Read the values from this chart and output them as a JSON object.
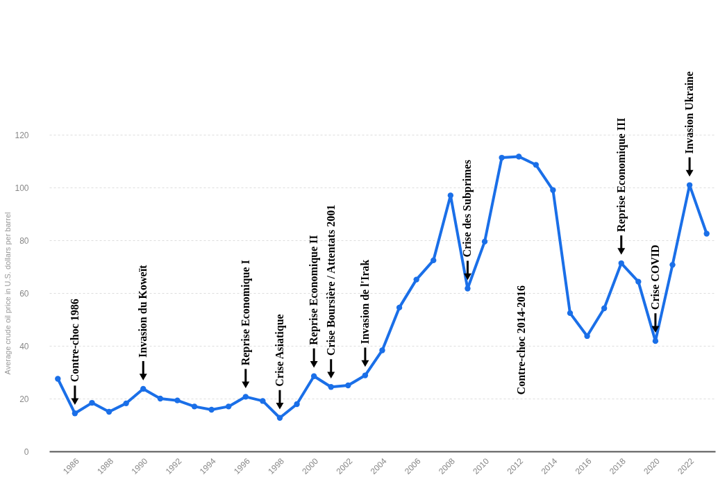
{
  "chart_data": {
    "type": "line",
    "ylabel": "Average crude oil price in U.S. dollars per barrel",
    "x": [
      1985,
      1986,
      1987,
      1988,
      1989,
      1990,
      1991,
      1992,
      1993,
      1994,
      1995,
      1996,
      1997,
      1998,
      1999,
      2000,
      2001,
      2002,
      2003,
      2004,
      2005,
      2006,
      2007,
      2008,
      2009,
      2010,
      2011,
      2012,
      2013,
      2014,
      2015,
      2016,
      2017,
      2018,
      2019,
      2020,
      2021,
      2022,
      2023
    ],
    "series": [
      {
        "color": "#1a6fe8",
        "values": [
          27.5,
          14.4,
          18.4,
          15.0,
          18.2,
          23.7,
          20.0,
          19.3,
          17.0,
          15.8,
          17.0,
          20.7,
          19.1,
          12.7,
          17.9,
          28.5,
          24.4,
          25.0,
          28.8,
          38.3,
          54.5,
          65.1,
          72.4,
          97.0,
          61.7,
          79.5,
          111.3,
          111.7,
          108.6,
          99.0,
          52.4,
          43.7,
          54.2,
          71.3,
          64.3,
          41.8,
          70.7,
          100.9,
          82.5
        ]
      }
    ],
    "xlim": [
      1984.5,
      2023.5
    ],
    "xticks": [
      1986,
      1988,
      1990,
      1992,
      1994,
      1996,
      1998,
      2000,
      2002,
      2004,
      2006,
      2008,
      2010,
      2012,
      2014,
      2016,
      2018,
      2020,
      2022
    ],
    "ylim": [
      0,
      120
    ],
    "yticks": [
      0,
      20,
      40,
      60,
      80,
      100,
      120
    ],
    "grid": "y",
    "marker": "circle",
    "line_style": "solid",
    "annotations": [
      {
        "text": "Contre-choc 1986",
        "x": 1986,
        "y": 14.4
      },
      {
        "text": "Invasion du Koweït",
        "x": 1990,
        "y": 23.7
      },
      {
        "text": "Reprise Economique I",
        "x": 1996,
        "y": 20.7
      },
      {
        "text": "Crise Asiatique",
        "x": 1998,
        "y": 12.7
      },
      {
        "text": "Reprise Economique II",
        "x": 2000,
        "y": 28.5
      },
      {
        "text": "Crise Boursière / Attentats 2001",
        "x": 2001,
        "y": 24.4
      },
      {
        "text": "Invasion de l'Irak",
        "x": 2003,
        "y": 28.8
      },
      {
        "text": "Crise des Subprimes",
        "x": 2009,
        "y": 61.7
      },
      {
        "text": "Reprise Economique III",
        "x": 2018,
        "y": 71.3
      },
      {
        "text": "Crise COVID",
        "x": 2020,
        "y": 41.8
      },
      {
        "text": "Invasion Ukraine",
        "x": 2022,
        "y": 100.9
      },
      "Contre-choc 2014-2016"
    ]
  }
}
